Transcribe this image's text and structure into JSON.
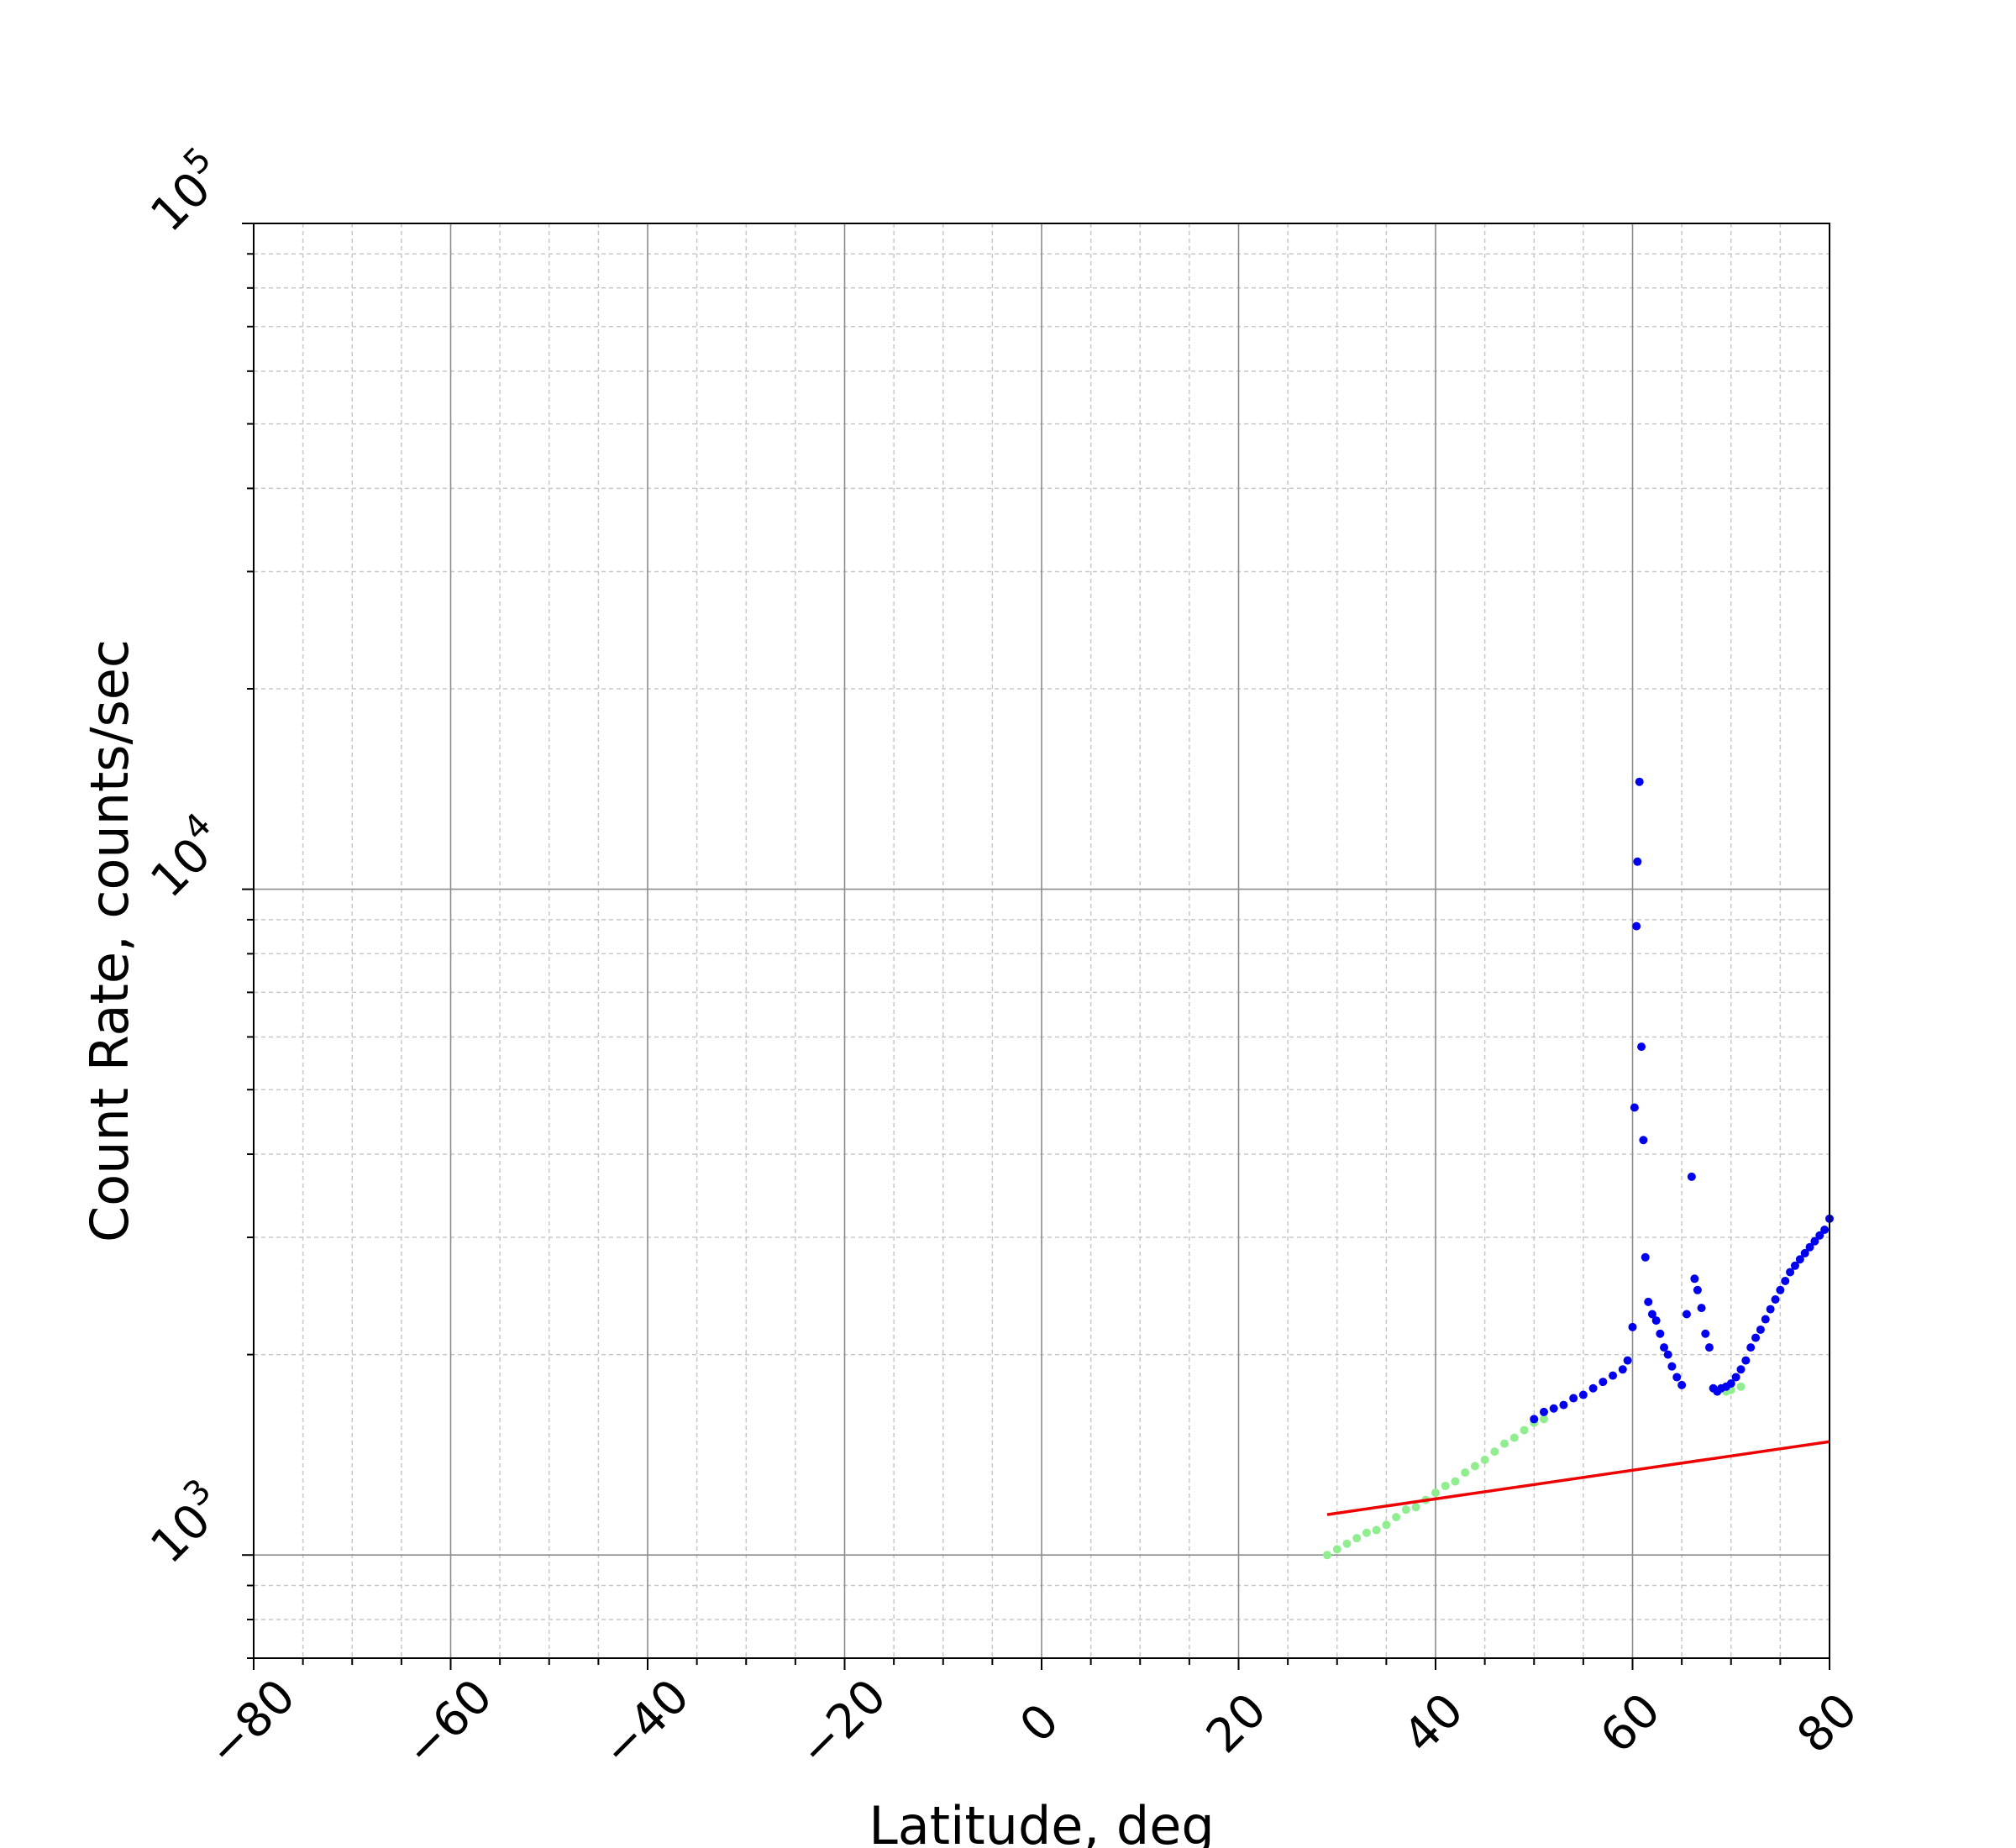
{
  "chart_data": {
    "type": "scatter",
    "title": "",
    "xlabel": "Latitude, deg",
    "ylabel": "Count Rate, counts/sec",
    "xlim": [
      -80,
      80
    ],
    "ylim": [
      700,
      100000
    ],
    "yscale": "log",
    "grid": true,
    "x_ticks": [
      -80,
      -60,
      -40,
      -20,
      0,
      20,
      40,
      60,
      80
    ],
    "x_tick_labels": [
      "−80",
      "−60",
      "−40",
      "−20",
      "0",
      "20",
      "40",
      "60",
      "80"
    ],
    "y_ticks": [
      {
        "value": 1000,
        "base": "10",
        "exp": "3"
      },
      {
        "value": 10000,
        "base": "10",
        "exp": "4"
      },
      {
        "value": 100000,
        "base": "10",
        "exp": "5"
      }
    ],
    "series": [
      {
        "color": "#90ee90",
        "kind": "scatter",
        "x": [
          29,
          30,
          31,
          32,
          33,
          34,
          35,
          36,
          37,
          38,
          39,
          40,
          41,
          42,
          43,
          44,
          45,
          46,
          47,
          48,
          49,
          50,
          51,
          69.5,
          70,
          71
        ],
        "y": [
          1000,
          1020,
          1040,
          1060,
          1080,
          1090,
          1110,
          1140,
          1170,
          1180,
          1210,
          1240,
          1270,
          1290,
          1330,
          1360,
          1390,
          1430,
          1470,
          1500,
          1540,
          1580,
          1600,
          1760,
          1770,
          1790
        ]
      },
      {
        "color": "#0000ee",
        "kind": "scatter",
        "x": [
          50,
          51,
          52,
          53,
          54,
          55,
          56,
          57,
          58,
          59,
          59.5,
          60,
          60.2,
          60.4,
          60.5,
          60.7,
          60.9,
          61.1,
          61.3,
          61.6,
          62,
          62.4,
          62.8,
          63.2,
          63.6,
          64,
          64.5,
          65,
          65.5,
          66,
          66.3,
          66.6,
          67,
          67.4,
          67.8,
          68.2,
          68.6,
          69,
          69.5,
          70,
          70.5,
          71,
          71.5,
          72,
          72.5,
          73,
          73.5,
          74,
          74.5,
          75,
          75.5,
          76,
          76.5,
          77,
          77.5,
          78,
          78.5,
          79,
          79.5,
          80
        ],
        "y": [
          1600,
          1640,
          1660,
          1680,
          1720,
          1740,
          1780,
          1820,
          1860,
          1900,
          1960,
          2200,
          4700,
          8800,
          11000,
          14500,
          5800,
          4200,
          2800,
          2400,
          2300,
          2250,
          2150,
          2050,
          2000,
          1920,
          1850,
          1800,
          2300,
          3700,
          2600,
          2500,
          2350,
          2150,
          2050,
          1780,
          1760,
          1780,
          1790,
          1810,
          1850,
          1900,
          1960,
          2050,
          2120,
          2180,
          2260,
          2340,
          2420,
          2500,
          2580,
          2660,
          2720,
          2780,
          2840,
          2900,
          2960,
          3020,
          3080,
          3200
        ]
      },
      {
        "color": "#ee0000",
        "kind": "line",
        "x": [
          29,
          80
        ],
        "y": [
          1150,
          1480
        ]
      }
    ]
  }
}
